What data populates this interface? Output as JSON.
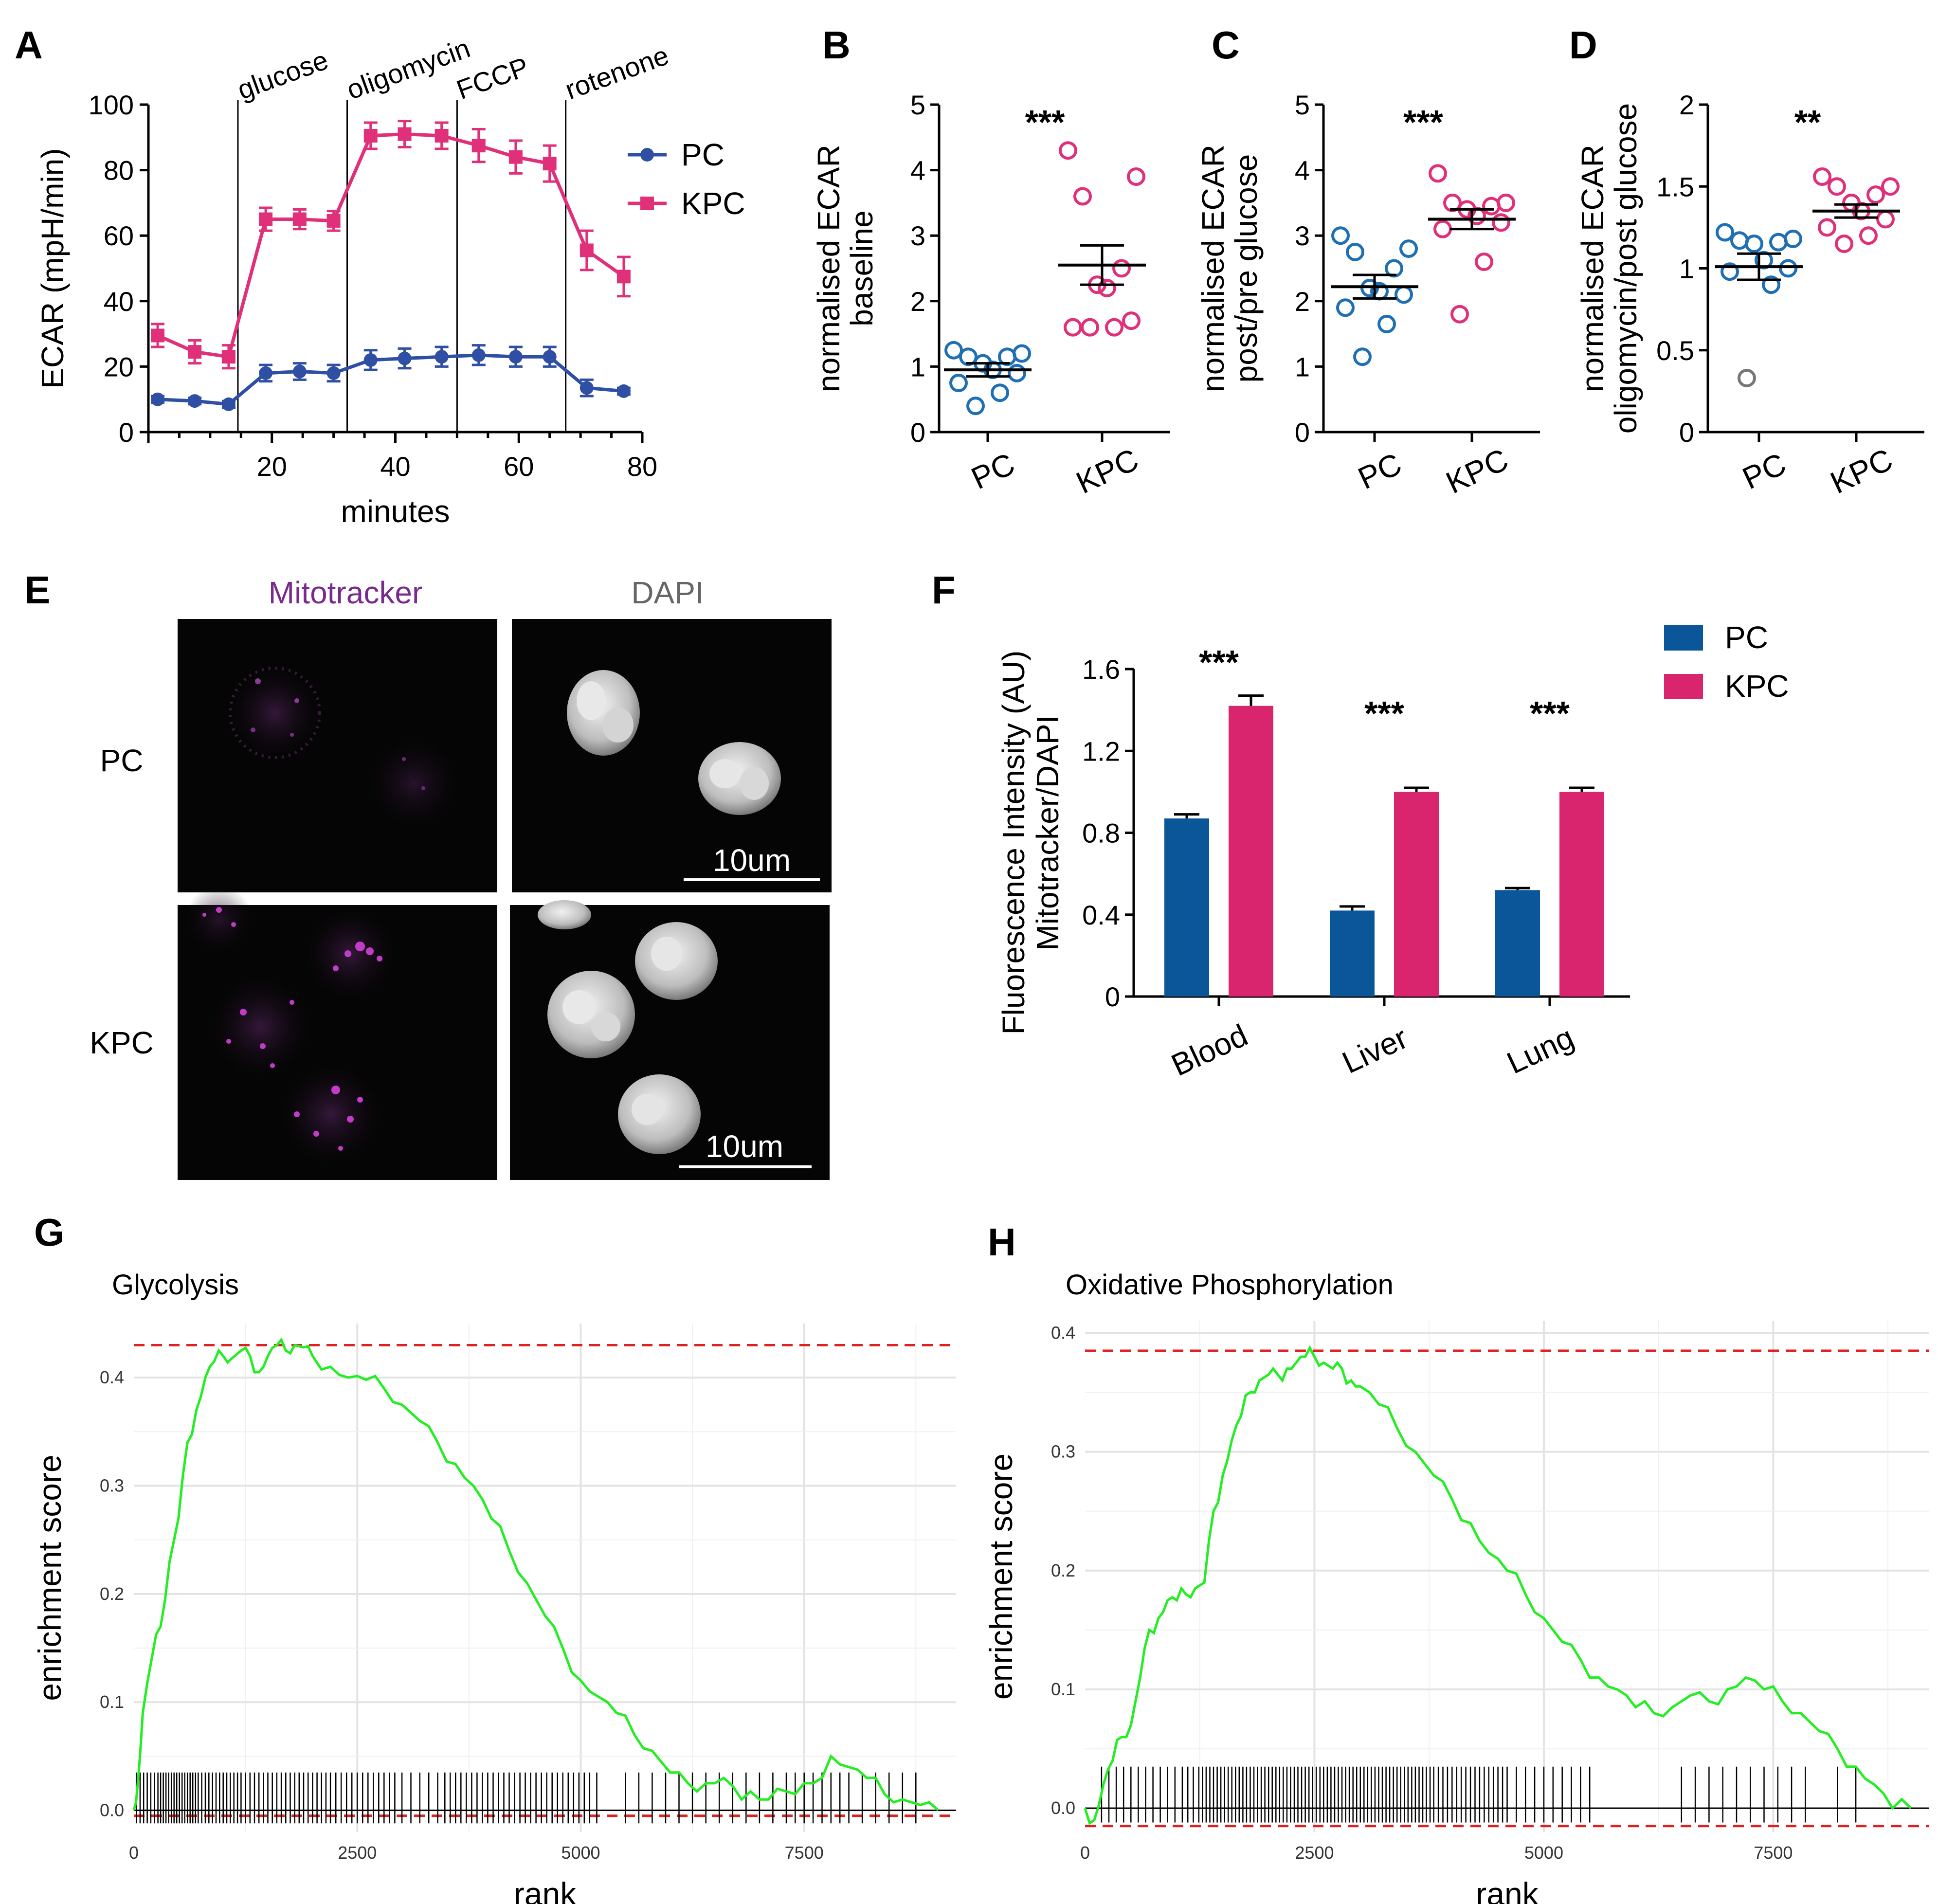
{
  "panels": {
    "A": "A",
    "B": "B",
    "C": "C",
    "D": "D",
    "E": "E",
    "F": "F",
    "G": "G",
    "H": "H"
  },
  "colors": {
    "pc": "#2E4FA3",
    "kpc": "#E0307A",
    "pc_dot": "#1F6FB5",
    "kpc_dot": "#E0307A",
    "pc_bar": "#0B5699",
    "kpc_bar": "#D9246E",
    "gsea_line": "#22EE22",
    "gsea_dash": "#E02020",
    "outlier": "#777777"
  },
  "chart_data": [
    {
      "id": "A",
      "type": "line",
      "xlabel": "minutes",
      "ylabel": "ECAR (mpH/min)",
      "xlim": [
        0,
        80
      ],
      "ylim": [
        0,
        100
      ],
      "xticks": [
        "20",
        "40",
        "60",
        "80"
      ],
      "yticks": [
        "0",
        "20",
        "40",
        "60",
        "80",
        "100"
      ],
      "injections": [
        {
          "label": "glucose",
          "x": 14.5
        },
        {
          "label": "oligomycin",
          "x": 32.2
        },
        {
          "label": "FCCP",
          "x": 50
        },
        {
          "label": "rotenone",
          "x": 67.6
        }
      ],
      "series": [
        {
          "name": "PC",
          "x": [
            1.5,
            7.5,
            13,
            19,
            24.5,
            30,
            36,
            41.5,
            47.5,
            53.5,
            59.5,
            65,
            71,
            77
          ],
          "y": [
            10,
            9.5,
            8.5,
            18,
            18.5,
            18,
            22,
            22.5,
            23,
            23.5,
            23,
            23,
            13.5,
            12.5
          ],
          "err": [
            1,
            1,
            1,
            2.5,
            2.5,
            2.5,
            3,
            3,
            3,
            3,
            3,
            3,
            2.5,
            1
          ]
        },
        {
          "name": "KPC",
          "x": [
            1.5,
            7.5,
            13,
            19,
            24.5,
            30,
            36,
            41.5,
            47.5,
            53.5,
            59.5,
            65,
            71,
            77
          ],
          "y": [
            29.5,
            24.5,
            23,
            65,
            65,
            64.5,
            90.5,
            91,
            90.5,
            87.5,
            84,
            82,
            55.5,
            47.5
          ],
          "err": [
            3.5,
            3.5,
            3.5,
            3.5,
            3,
            3,
            4,
            4,
            4,
            5,
            5,
            5.5,
            6,
            6
          ]
        }
      ]
    },
    {
      "id": "B",
      "type": "scatter",
      "ylabel": [
        "normalised ECAR",
        "baseline"
      ],
      "ylim": [
        0,
        5
      ],
      "yticks": [
        "0",
        "1",
        "2",
        "3",
        "4",
        "5"
      ],
      "categories": [
        "PC",
        "KPC"
      ],
      "significance": "***",
      "groups": [
        {
          "name": "PC",
          "mean": 0.95,
          "sem": 0.1,
          "points": [
            1.25,
            1.2,
            1.15,
            1.15,
            1.05,
            0.95,
            0.9,
            0.75,
            0.6,
            0.4
          ]
        },
        {
          "name": "KPC",
          "mean": 2.55,
          "sem": 0.3,
          "points": [
            4.3,
            3.9,
            3.6,
            2.5,
            2.25,
            2.2,
            1.7,
            1.6,
            1.6,
            1.6
          ]
        }
      ]
    },
    {
      "id": "C",
      "type": "scatter",
      "ylabel": [
        "normalised ECAR",
        "post/pre glucose"
      ],
      "ylim": [
        0,
        5
      ],
      "yticks": [
        "0",
        "1",
        "2",
        "3",
        "4",
        "5"
      ],
      "categories": [
        "PC",
        "KPC"
      ],
      "significance": "***",
      "groups": [
        {
          "name": "PC",
          "mean": 2.22,
          "sem": 0.18,
          "points": [
            3.0,
            2.8,
            2.75,
            2.5,
            2.2,
            2.15,
            2.1,
            1.9,
            1.65,
            1.15
          ]
        },
        {
          "name": "KPC",
          "mean": 3.25,
          "sem": 0.15,
          "points": [
            3.95,
            3.5,
            3.5,
            3.45,
            3.4,
            3.3,
            3.2,
            3.1,
            2.6,
            1.8
          ]
        }
      ]
    },
    {
      "id": "D",
      "type": "scatter",
      "ylabel": [
        "normalised ECAR",
        "oligomycin/post glucose"
      ],
      "ylim": [
        0,
        2
      ],
      "yticks": [
        "0",
        "0.5",
        "1",
        "1.5",
        "2"
      ],
      "categories": [
        "PC",
        "KPC"
      ],
      "significance": "**",
      "groups": [
        {
          "name": "PC",
          "mean": 1.01,
          "sem": 0.08,
          "points": [
            1.22,
            1.18,
            1.17,
            1.16,
            1.15,
            1.05,
            1.0,
            0.98,
            0.9,
            0.33
          ],
          "outlier_index": 9
        },
        {
          "name": "KPC",
          "mean": 1.35,
          "sem": 0.04,
          "points": [
            1.56,
            1.5,
            1.5,
            1.45,
            1.4,
            1.35,
            1.3,
            1.25,
            1.2,
            1.15
          ]
        }
      ]
    },
    {
      "id": "F",
      "type": "bar",
      "ylabel": [
        "Fluorescence Intensity (AU)",
        "Mitotracker/DAPI"
      ],
      "ylim": [
        0,
        1.6
      ],
      "yticks": [
        "0",
        "0.4",
        "0.8",
        "1.2",
        "1.6"
      ],
      "categories": [
        "Blood",
        "Liver",
        "Lung"
      ],
      "significance": [
        "***",
        "***",
        "***"
      ],
      "series": [
        {
          "name": "PC",
          "values": [
            0.87,
            0.42,
            0.52
          ],
          "err": [
            0.02,
            0.02,
            0.01
          ]
        },
        {
          "name": "KPC",
          "values": [
            1.42,
            1.0,
            1.0
          ],
          "err": [
            0.05,
            0.02,
            0.02
          ]
        }
      ]
    },
    {
      "id": "G",
      "type": "line",
      "title": "Glycolysis",
      "xlabel": "rank",
      "ylabel": "enrichment score",
      "xlim": [
        0,
        9200
      ],
      "ylim": [
        -0.02,
        0.45
      ],
      "xticks": [
        "0",
        "2500",
        "5000",
        "7500"
      ],
      "yticks": [
        "0.0",
        "0.1",
        "0.2",
        "0.3",
        "0.4"
      ],
      "es_max": 0.43,
      "es_min": -0.005,
      "curve_x": [
        0,
        50,
        100,
        200,
        300,
        400,
        500,
        600,
        700,
        800,
        900,
        1000,
        1100,
        1200,
        1300,
        1400,
        1500,
        1600,
        1700,
        1800,
        1900,
        2000,
        2200,
        2400,
        2600,
        2800,
        3000,
        3200,
        3400,
        3600,
        3800,
        4000,
        4200,
        4400,
        4600,
        4800,
        5000,
        5200,
        5400,
        5600,
        5800,
        6000,
        6200,
        6400,
        6600,
        6800,
        7000,
        7200,
        7400,
        7600,
        7800,
        8000,
        8200,
        8400,
        8600,
        8800,
        9000
      ],
      "curve_y": [
        0.0,
        0.03,
        0.09,
        0.14,
        0.17,
        0.23,
        0.27,
        0.34,
        0.37,
        0.4,
        0.415,
        0.42,
        0.418,
        0.425,
        0.42,
        0.405,
        0.42,
        0.43,
        0.425,
        0.43,
        0.428,
        0.42,
        0.41,
        0.4,
        0.398,
        0.39,
        0.375,
        0.36,
        0.34,
        0.32,
        0.3,
        0.27,
        0.24,
        0.21,
        0.18,
        0.15,
        0.12,
        0.105,
        0.09,
        0.07,
        0.055,
        0.035,
        0.025,
        0.025,
        0.03,
        0.01,
        0.01,
        0.02,
        0.015,
        0.025,
        0.05,
        0.04,
        0.03,
        0.015,
        0.01,
        0.005,
        0.0
      ],
      "hits": [
        30,
        70,
        110,
        150,
        190,
        230,
        270,
        300,
        330,
        360,
        390,
        420,
        450,
        480,
        510,
        540,
        570,
        600,
        630,
        660,
        690,
        720,
        760,
        800,
        840,
        880,
        920,
        960,
        1000,
        1040,
        1080,
        1120,
        1160,
        1200,
        1250,
        1300,
        1350,
        1400,
        1450,
        1500,
        1550,
        1600,
        1650,
        1700,
        1750,
        1800,
        1850,
        1900,
        1950,
        2000,
        2050,
        2100,
        2150,
        2200,
        2260,
        2320,
        2380,
        2440,
        2500,
        2560,
        2620,
        2680,
        2740,
        2800,
        2860,
        2920,
        3000,
        3100,
        3200,
        3300,
        3400,
        3480,
        3540,
        3600,
        3660,
        3720,
        3780,
        3840,
        3900,
        3960,
        4020,
        4080,
        4140,
        4200,
        4260,
        4320,
        4380,
        4440,
        4500,
        4560,
        4620,
        4680,
        4740,
        4800,
        4860,
        4920,
        4980,
        5040,
        5100,
        5180,
        5500,
        5650,
        5800,
        5950,
        6100,
        6250,
        6400,
        6550,
        6700,
        6850,
        7000,
        7150,
        7300,
        7400,
        7500,
        7600,
        7700,
        7800,
        7900,
        8000,
        8150,
        8300,
        8450,
        8600,
        8750
      ]
    },
    {
      "id": "H",
      "type": "line",
      "title": "Oxidative Phosphorylation",
      "xlabel": "rank",
      "ylabel": "enrichment score",
      "xlim": [
        0,
        9200
      ],
      "ylim": [
        -0.02,
        0.41
      ],
      "xticks": [
        "0",
        "2500",
        "5000",
        "7500"
      ],
      "yticks": [
        "0.0",
        "0.1",
        "0.2",
        "0.3",
        "0.4"
      ],
      "es_max": 0.385,
      "es_min": -0.015,
      "curve_x": [
        0,
        100,
        200,
        300,
        400,
        500,
        600,
        700,
        800,
        900,
        1000,
        1100,
        1200,
        1300,
        1400,
        1500,
        1600,
        1700,
        1800,
        1900,
        2000,
        2100,
        2200,
        2300,
        2400,
        2500,
        2600,
        2700,
        2800,
        2900,
        3000,
        3200,
        3400,
        3600,
        3800,
        4000,
        4200,
        4400,
        4600,
        4800,
        5000,
        5200,
        5400,
        5600,
        5800,
        6000,
        6200,
        6400,
        6600,
        6800,
        7000,
        7200,
        7400,
        7600,
        7800,
        8000,
        8200,
        8400,
        8600,
        8800,
        9000
      ],
      "curve_y": [
        0.0,
        -0.01,
        0.02,
        0.04,
        0.06,
        0.07,
        0.11,
        0.15,
        0.16,
        0.175,
        0.175,
        0.18,
        0.185,
        0.19,
        0.25,
        0.28,
        0.31,
        0.33,
        0.35,
        0.36,
        0.365,
        0.365,
        0.37,
        0.375,
        0.38,
        0.38,
        0.375,
        0.37,
        0.37,
        0.36,
        0.355,
        0.34,
        0.32,
        0.3,
        0.28,
        0.26,
        0.24,
        0.215,
        0.2,
        0.18,
        0.16,
        0.14,
        0.125,
        0.11,
        0.1,
        0.085,
        0.08,
        0.085,
        0.095,
        0.09,
        0.1,
        0.11,
        0.1,
        0.09,
        0.08,
        0.065,
        0.05,
        0.035,
        0.02,
        0.0,
        0.0
      ],
      "hits": [
        180,
        260,
        340,
        420,
        500,
        580,
        660,
        740,
        820,
        900,
        980,
        1060,
        1120,
        1180,
        1240,
        1280,
        1320,
        1360,
        1400,
        1440,
        1480,
        1520,
        1560,
        1600,
        1640,
        1680,
        1720,
        1760,
        1800,
        1840,
        1880,
        1920,
        1960,
        2000,
        2040,
        2080,
        2120,
        2160,
        2200,
        2240,
        2280,
        2320,
        2360,
        2400,
        2440,
        2480,
        2520,
        2560,
        2600,
        2640,
        2680,
        2720,
        2760,
        2800,
        2840,
        2880,
        2920,
        2960,
        3000,
        3040,
        3080,
        3120,
        3160,
        3200,
        3240,
        3280,
        3320,
        3360,
        3400,
        3440,
        3480,
        3520,
        3560,
        3600,
        3640,
        3680,
        3720,
        3760,
        3800,
        3850,
        3900,
        3950,
        4000,
        4050,
        4100,
        4150,
        4200,
        4250,
        4300,
        4350,
        4400,
        4450,
        4500,
        4550,
        4600,
        4700,
        4800,
        4900,
        5000,
        5100,
        5200,
        5300,
        5400,
        5500,
        6500,
        6650,
        6800,
        6950,
        7100,
        7250,
        7400,
        7550,
        7700,
        7850,
        8200,
        8400
      ]
    }
  ],
  "panelE": {
    "col_mito": "Mitotracker",
    "col_dapi": "DAPI",
    "row_pc": "PC",
    "row_kpc": "KPC",
    "scale_pc": "10um",
    "scale_kpc": "10um",
    "mito_color": "#7A2A8C",
    "dapi_color": "#666666"
  },
  "legendA": {
    "pc": "PC",
    "kpc": "KPC"
  },
  "legendF": {
    "pc": "PC",
    "kpc": "KPC"
  }
}
